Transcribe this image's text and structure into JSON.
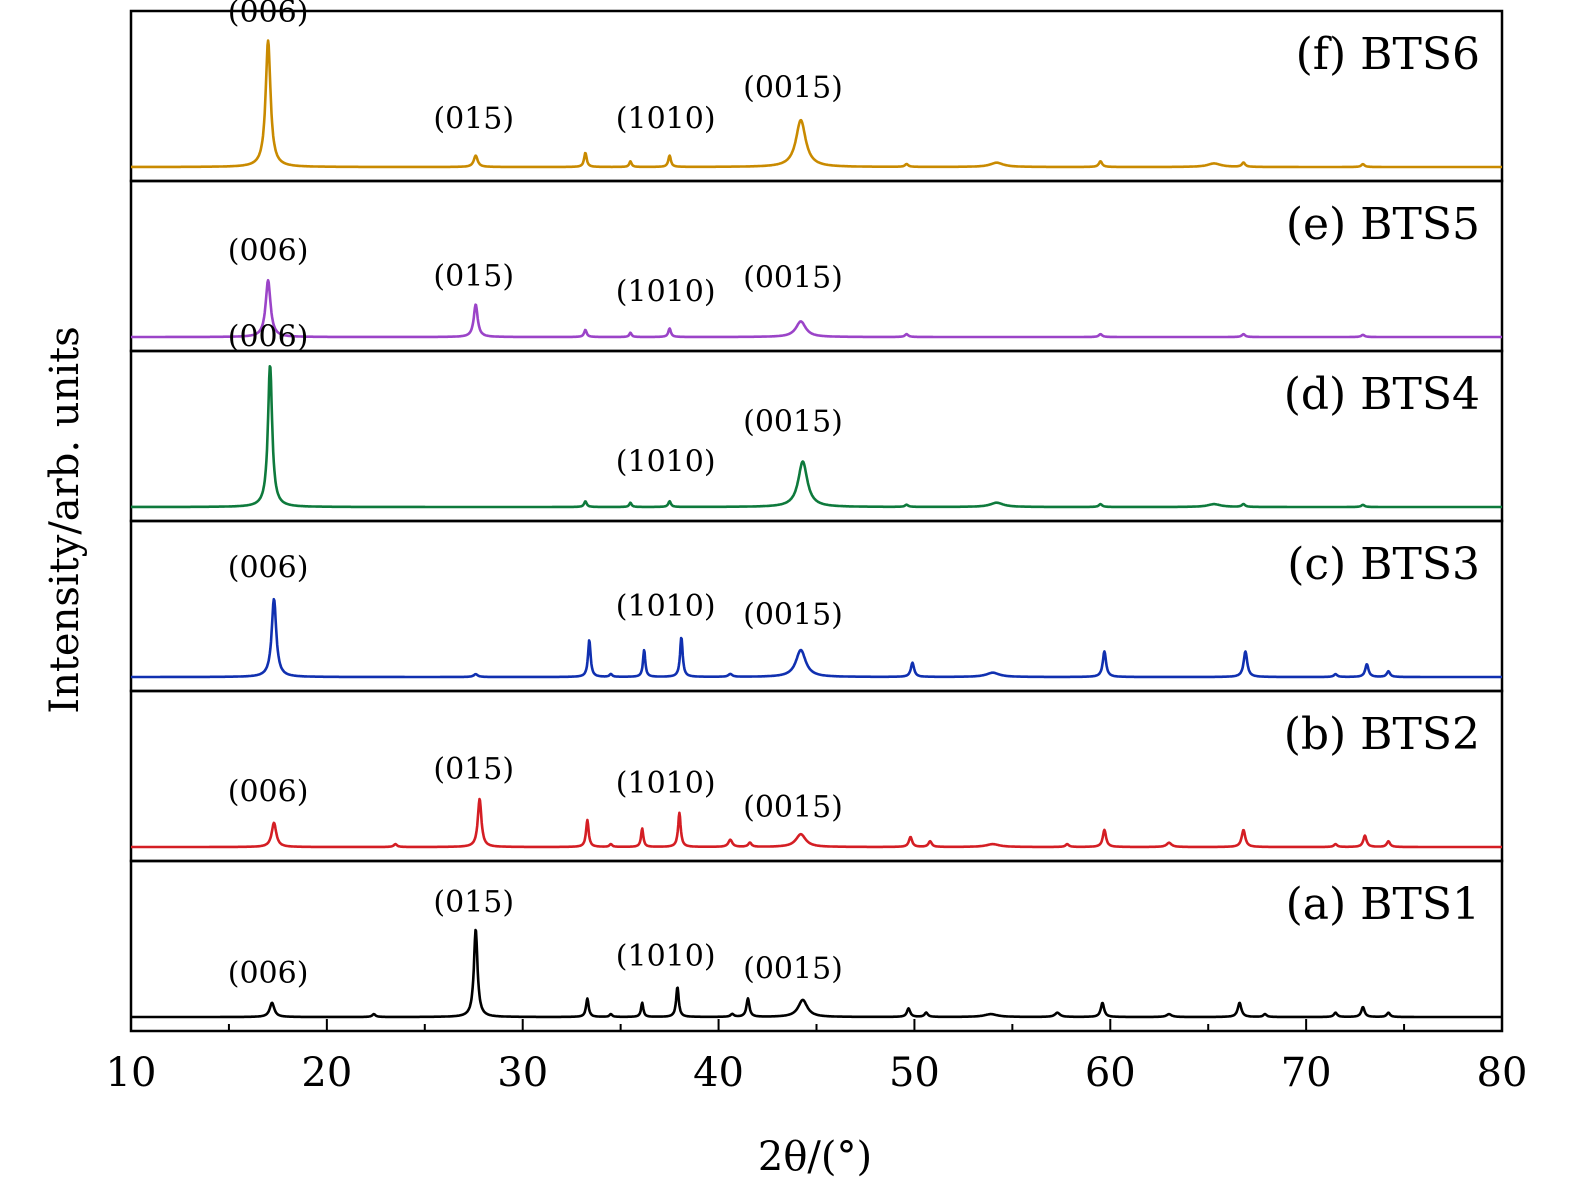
{
  "chart_data": {
    "type": "line",
    "xlabel": "2θ/(°)",
    "ylabel": "Intensity/arb. units",
    "xlim": [
      10,
      80
    ],
    "x_ticks": [
      10,
      20,
      30,
      40,
      50,
      60,
      70,
      80
    ],
    "x_minor_ticks": [
      15,
      25,
      35,
      45,
      55,
      65,
      75
    ],
    "y_ticks_shown": false,
    "grid": false,
    "legend": "none; each stacked panel carries its own label at the top-right",
    "panels": [
      {
        "label": "(f) BTS6",
        "color": "#C98A00",
        "peaks": [
          {
            "x": 17.0,
            "h": 0.89,
            "w": 0.15
          },
          {
            "x": 27.6,
            "h": 0.08,
            "w": 0.12
          },
          {
            "x": 33.2,
            "h": 0.1,
            "w": 0.08
          },
          {
            "x": 35.5,
            "h": 0.04,
            "w": 0.07
          },
          {
            "x": 37.5,
            "h": 0.08,
            "w": 0.08
          },
          {
            "x": 44.2,
            "h": 0.33,
            "w": 0.3
          },
          {
            "x": 49.6,
            "h": 0.02,
            "w": 0.1
          },
          {
            "x": 54.2,
            "h": 0.03,
            "w": 0.4
          },
          {
            "x": 59.5,
            "h": 0.04,
            "w": 0.1
          },
          {
            "x": 65.3,
            "h": 0.025,
            "w": 0.4
          },
          {
            "x": 66.8,
            "h": 0.03,
            "w": 0.1
          },
          {
            "x": 72.9,
            "h": 0.02,
            "w": 0.1
          }
        ],
        "peak_labels": [
          {
            "text": "(006)",
            "x": 17.0,
            "h": 1.02
          },
          {
            "text": "(015)",
            "x": 27.5,
            "h": 0.27
          },
          {
            "text": "(1010)",
            "x": 37.3,
            "h": 0.27
          },
          {
            "text": "(0015)",
            "x": 43.8,
            "h": 0.49
          }
        ]
      },
      {
        "label": "(e) BTS5",
        "color": "#9B44C8",
        "peaks": [
          {
            "x": 17.0,
            "h": 0.4,
            "w": 0.15
          },
          {
            "x": 27.6,
            "h": 0.23,
            "w": 0.12
          },
          {
            "x": 33.2,
            "h": 0.05,
            "w": 0.08
          },
          {
            "x": 35.5,
            "h": 0.03,
            "w": 0.07
          },
          {
            "x": 37.5,
            "h": 0.06,
            "w": 0.08
          },
          {
            "x": 44.2,
            "h": 0.11,
            "w": 0.3
          },
          {
            "x": 49.6,
            "h": 0.02,
            "w": 0.1
          },
          {
            "x": 59.5,
            "h": 0.02,
            "w": 0.1
          },
          {
            "x": 66.8,
            "h": 0.02,
            "w": 0.1
          },
          {
            "x": 72.9,
            "h": 0.015,
            "w": 0.1
          }
        ],
        "peak_labels": [
          {
            "text": "(006)",
            "x": 17.0,
            "h": 0.54
          },
          {
            "text": "(015)",
            "x": 27.5,
            "h": 0.36
          },
          {
            "text": "(1010)",
            "x": 37.3,
            "h": 0.25
          },
          {
            "text": "(0015)",
            "x": 43.8,
            "h": 0.35
          }
        ]
      },
      {
        "label": "(d) BTS4",
        "color": "#0E7A3C",
        "peaks": [
          {
            "x": 17.1,
            "h": 1.0,
            "w": 0.13
          },
          {
            "x": 33.2,
            "h": 0.04,
            "w": 0.08
          },
          {
            "x": 35.5,
            "h": 0.03,
            "w": 0.07
          },
          {
            "x": 37.5,
            "h": 0.04,
            "w": 0.08
          },
          {
            "x": 44.3,
            "h": 0.32,
            "w": 0.28
          },
          {
            "x": 49.6,
            "h": 0.015,
            "w": 0.1
          },
          {
            "x": 54.2,
            "h": 0.03,
            "w": 0.4
          },
          {
            "x": 59.5,
            "h": 0.02,
            "w": 0.1
          },
          {
            "x": 65.3,
            "h": 0.02,
            "w": 0.4
          },
          {
            "x": 66.8,
            "h": 0.02,
            "w": 0.1
          },
          {
            "x": 72.9,
            "h": 0.015,
            "w": 0.1
          }
        ],
        "peak_labels": [
          {
            "text": "(006)",
            "x": 17.0,
            "h": 1.13
          },
          {
            "text": "(1010)",
            "x": 37.3,
            "h": 0.25
          },
          {
            "text": "(0015)",
            "x": 43.8,
            "h": 0.53
          }
        ]
      },
      {
        "label": "(c) BTS3",
        "color": "#1030B0",
        "peaks": [
          {
            "x": 17.3,
            "h": 0.55,
            "w": 0.14
          },
          {
            "x": 27.6,
            "h": 0.02,
            "w": 0.12
          },
          {
            "x": 33.4,
            "h": 0.26,
            "w": 0.08
          },
          {
            "x": 34.5,
            "h": 0.02,
            "w": 0.08
          },
          {
            "x": 36.2,
            "h": 0.19,
            "w": 0.07
          },
          {
            "x": 38.1,
            "h": 0.28,
            "w": 0.08
          },
          {
            "x": 40.6,
            "h": 0.02,
            "w": 0.12
          },
          {
            "x": 44.2,
            "h": 0.19,
            "w": 0.3
          },
          {
            "x": 49.9,
            "h": 0.1,
            "w": 0.1
          },
          {
            "x": 54.0,
            "h": 0.03,
            "w": 0.4
          },
          {
            "x": 59.7,
            "h": 0.18,
            "w": 0.1
          },
          {
            "x": 66.9,
            "h": 0.18,
            "w": 0.11
          },
          {
            "x": 71.5,
            "h": 0.02,
            "w": 0.1
          },
          {
            "x": 73.1,
            "h": 0.09,
            "w": 0.1
          },
          {
            "x": 74.2,
            "h": 0.04,
            "w": 0.1
          }
        ],
        "peak_labels": [
          {
            "text": "(006)",
            "x": 17.0,
            "h": 0.7
          },
          {
            "text": "(1010)",
            "x": 37.3,
            "h": 0.43
          },
          {
            "text": "(0015)",
            "x": 43.8,
            "h": 0.37
          }
        ]
      },
      {
        "label": "(b) BTS2",
        "color": "#D41E24",
        "peaks": [
          {
            "x": 17.3,
            "h": 0.17,
            "w": 0.14
          },
          {
            "x": 23.5,
            "h": 0.02,
            "w": 0.1
          },
          {
            "x": 27.8,
            "h": 0.34,
            "w": 0.11
          },
          {
            "x": 33.3,
            "h": 0.19,
            "w": 0.08
          },
          {
            "x": 34.5,
            "h": 0.02,
            "w": 0.08
          },
          {
            "x": 36.1,
            "h": 0.13,
            "w": 0.07
          },
          {
            "x": 38.0,
            "h": 0.24,
            "w": 0.08
          },
          {
            "x": 40.6,
            "h": 0.05,
            "w": 0.12
          },
          {
            "x": 41.6,
            "h": 0.03,
            "w": 0.1
          },
          {
            "x": 44.2,
            "h": 0.09,
            "w": 0.3
          },
          {
            "x": 49.8,
            "h": 0.07,
            "w": 0.1
          },
          {
            "x": 50.8,
            "h": 0.04,
            "w": 0.1
          },
          {
            "x": 54.0,
            "h": 0.02,
            "w": 0.4
          },
          {
            "x": 57.8,
            "h": 0.02,
            "w": 0.1
          },
          {
            "x": 59.7,
            "h": 0.12,
            "w": 0.1
          },
          {
            "x": 63.0,
            "h": 0.03,
            "w": 0.15
          },
          {
            "x": 66.8,
            "h": 0.12,
            "w": 0.11
          },
          {
            "x": 71.5,
            "h": 0.02,
            "w": 0.1
          },
          {
            "x": 73.0,
            "h": 0.08,
            "w": 0.1
          },
          {
            "x": 74.2,
            "h": 0.04,
            "w": 0.1
          }
        ],
        "peak_labels": [
          {
            "text": "(006)",
            "x": 17.0,
            "h": 0.32
          },
          {
            "text": "(015)",
            "x": 27.5,
            "h": 0.48
          },
          {
            "text": "(1010)",
            "x": 37.3,
            "h": 0.38
          },
          {
            "text": "(0015)",
            "x": 43.8,
            "h": 0.21
          }
        ]
      },
      {
        "label": "(a) BTS1",
        "color": "#000000",
        "peaks": [
          {
            "x": 17.2,
            "h": 0.1,
            "w": 0.14
          },
          {
            "x": 22.4,
            "h": 0.02,
            "w": 0.1
          },
          {
            "x": 27.6,
            "h": 0.62,
            "w": 0.11
          },
          {
            "x": 33.3,
            "h": 0.13,
            "w": 0.08
          },
          {
            "x": 34.5,
            "h": 0.02,
            "w": 0.08
          },
          {
            "x": 36.1,
            "h": 0.1,
            "w": 0.07
          },
          {
            "x": 37.9,
            "h": 0.21,
            "w": 0.08
          },
          {
            "x": 40.7,
            "h": 0.02,
            "w": 0.1
          },
          {
            "x": 41.5,
            "h": 0.13,
            "w": 0.09
          },
          {
            "x": 44.3,
            "h": 0.12,
            "w": 0.28
          },
          {
            "x": 49.7,
            "h": 0.06,
            "w": 0.1
          },
          {
            "x": 50.6,
            "h": 0.03,
            "w": 0.1
          },
          {
            "x": 53.9,
            "h": 0.02,
            "w": 0.4
          },
          {
            "x": 57.3,
            "h": 0.03,
            "w": 0.15
          },
          {
            "x": 59.6,
            "h": 0.1,
            "w": 0.1
          },
          {
            "x": 63.0,
            "h": 0.02,
            "w": 0.15
          },
          {
            "x": 66.6,
            "h": 0.1,
            "w": 0.11
          },
          {
            "x": 67.9,
            "h": 0.02,
            "w": 0.1
          },
          {
            "x": 71.5,
            "h": 0.03,
            "w": 0.1
          },
          {
            "x": 72.9,
            "h": 0.07,
            "w": 0.1
          },
          {
            "x": 74.2,
            "h": 0.03,
            "w": 0.1
          }
        ],
        "peak_labels": [
          {
            "text": "(006)",
            "x": 17.0,
            "h": 0.24
          },
          {
            "text": "(015)",
            "x": 27.5,
            "h": 0.74
          },
          {
            "text": "(1010)",
            "x": 37.3,
            "h": 0.36
          },
          {
            "text": "(0015)",
            "x": 43.8,
            "h": 0.27
          }
        ]
      }
    ]
  }
}
